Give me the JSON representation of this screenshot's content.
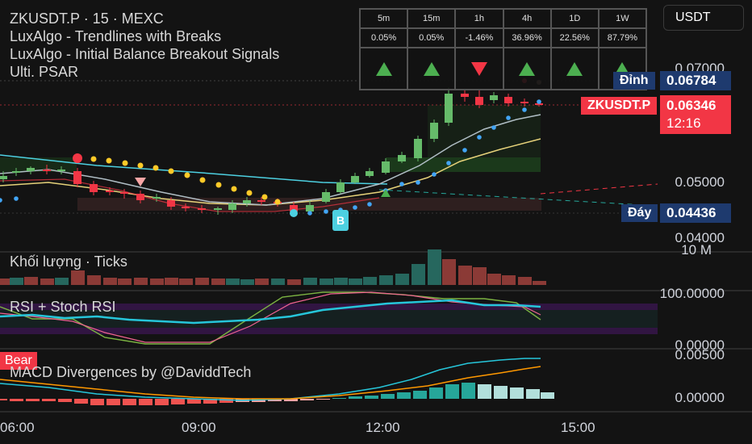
{
  "legend": {
    "symbol_line": "ZKUSDT.P · 15 · MEXC",
    "indicators": [
      "LuxAlgo - Trendlines with Breaks",
      "LuxAlgo - Initial Balance Breakout Signals",
      "Ulti. PSAR"
    ]
  },
  "currency_button": "USDT",
  "tf_table": {
    "timeframes": [
      "5m",
      "15m",
      "1h",
      "4h",
      "1D",
      "1W"
    ],
    "changes": [
      "0.05%",
      "0.05%",
      "-1.46%",
      "36.96%",
      "22.56%",
      "87.79%"
    ],
    "directions": [
      "up",
      "up",
      "down",
      "up",
      "up",
      "up"
    ],
    "colors": {
      "up": "#4caf50",
      "down": "#f23645"
    }
  },
  "price_labels": {
    "high_label": "Đỉnh",
    "high_value": "0.06784",
    "symbol_tag": "ZKUSDT.P",
    "last_price": "0.06346",
    "countdown": "12:16",
    "low_label": "Đáy",
    "low_value": "0.04436"
  },
  "price_axis": [
    "0.07000",
    "0.05000",
    "0.04000"
  ],
  "panes": {
    "volume": {
      "title": "Khối lượng · Ticks",
      "axis": "10 M"
    },
    "rsi": {
      "title": "RSI + Stoch RSI",
      "axis_top": "100.00000",
      "axis_bottom": "0.00000"
    },
    "macd": {
      "title": "MACD Divergences by @DaviddTech",
      "axis_top": "0.00500",
      "axis_bottom": "0.00000",
      "bear_tag": "Bear"
    }
  },
  "signal_tag": "B",
  "time_axis": [
    "06:00",
    "09:00",
    "12:00",
    "15:00"
  ],
  "colors": {
    "background": "#131313",
    "up_candle": "#66bb6a",
    "down_candle": "#f23645",
    "high_label_bg": "#1e3a6e",
    "last_price_bg": "#f23645",
    "psar_dot": "#ffca28",
    "trendline": "#4dd0e1"
  }
}
